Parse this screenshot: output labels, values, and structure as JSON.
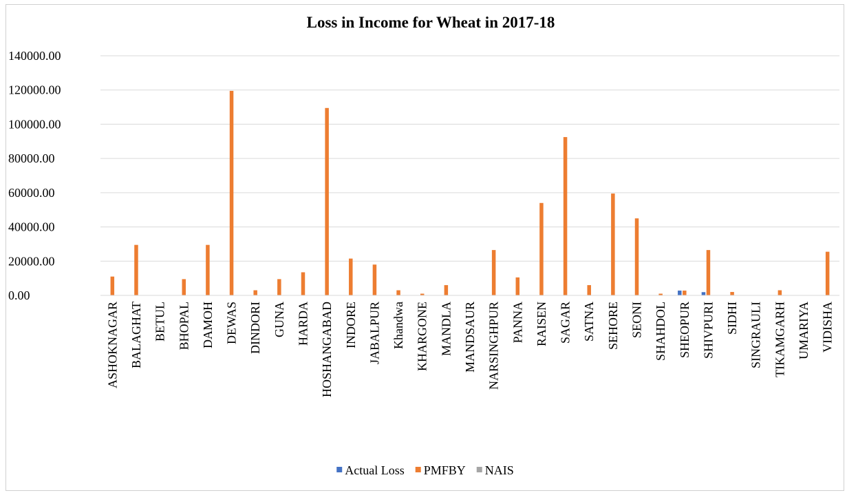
{
  "chart_data": {
    "type": "bar",
    "title": "Loss in Income for Wheat in 2017-18",
    "xlabel": "",
    "ylabel": "",
    "ylim": [
      0,
      140000
    ],
    "yticks": [
      "0.00",
      "20000.00",
      "40000.00",
      "60000.00",
      "80000.00",
      "100000.00",
      "120000.00",
      "140000.00"
    ],
    "grid": true,
    "legend_position": "bottom",
    "categories": [
      "ASHOKNAGAR",
      "BALAGHAT",
      "BETUL",
      "BHOPAL",
      "DAMOH",
      "DEWAS",
      "DINDORI",
      "GUNA",
      "HARDA",
      "HOSHANGABAD",
      "INDORE",
      "JABALPUR",
      "Khandwa",
      "KHARGONE",
      "MANDLA",
      "MANDSAUR",
      "NARSINGHPUR",
      "PANNA",
      "RAISEN",
      "SAGAR",
      "SATNA",
      "SEHORE",
      "SEONI",
      "SHAHDOL",
      "SHEOPUR",
      "SHIVPURI",
      "SIDHI",
      "SINGRAULI",
      "TIKAMGARH",
      "UMARIYA",
      "VIDISHA"
    ],
    "series": [
      {
        "name": "Actual Loss",
        "color": "#4472C4",
        "values": [
          0,
          0,
          0,
          0,
          0,
          0,
          0,
          0,
          0,
          0,
          0,
          0,
          0,
          0,
          0,
          0,
          0,
          0,
          0,
          0,
          0,
          0,
          0,
          0,
          2800,
          1900,
          0,
          0,
          0,
          0,
          0
        ]
      },
      {
        "name": "PMFBY",
        "color": "#ED7D31",
        "values": [
          11000,
          29500,
          0,
          9500,
          29500,
          119500,
          3000,
          9500,
          13500,
          109500,
          21500,
          18000,
          3000,
          1000,
          6000,
          0,
          26500,
          10500,
          54000,
          92500,
          6000,
          59500,
          45000,
          1000,
          2800,
          26500,
          2000,
          0,
          3000,
          0,
          25500
        ]
      },
      {
        "name": "NAIS",
        "color": "#A5A5A5",
        "values": [
          0,
          0,
          0,
          0,
          0,
          0,
          0,
          0,
          0,
          0,
          0,
          0,
          0,
          0,
          0,
          0,
          0,
          0,
          0,
          0,
          0,
          0,
          0,
          0,
          0,
          0,
          0,
          0,
          0,
          0,
          0
        ]
      }
    ]
  }
}
